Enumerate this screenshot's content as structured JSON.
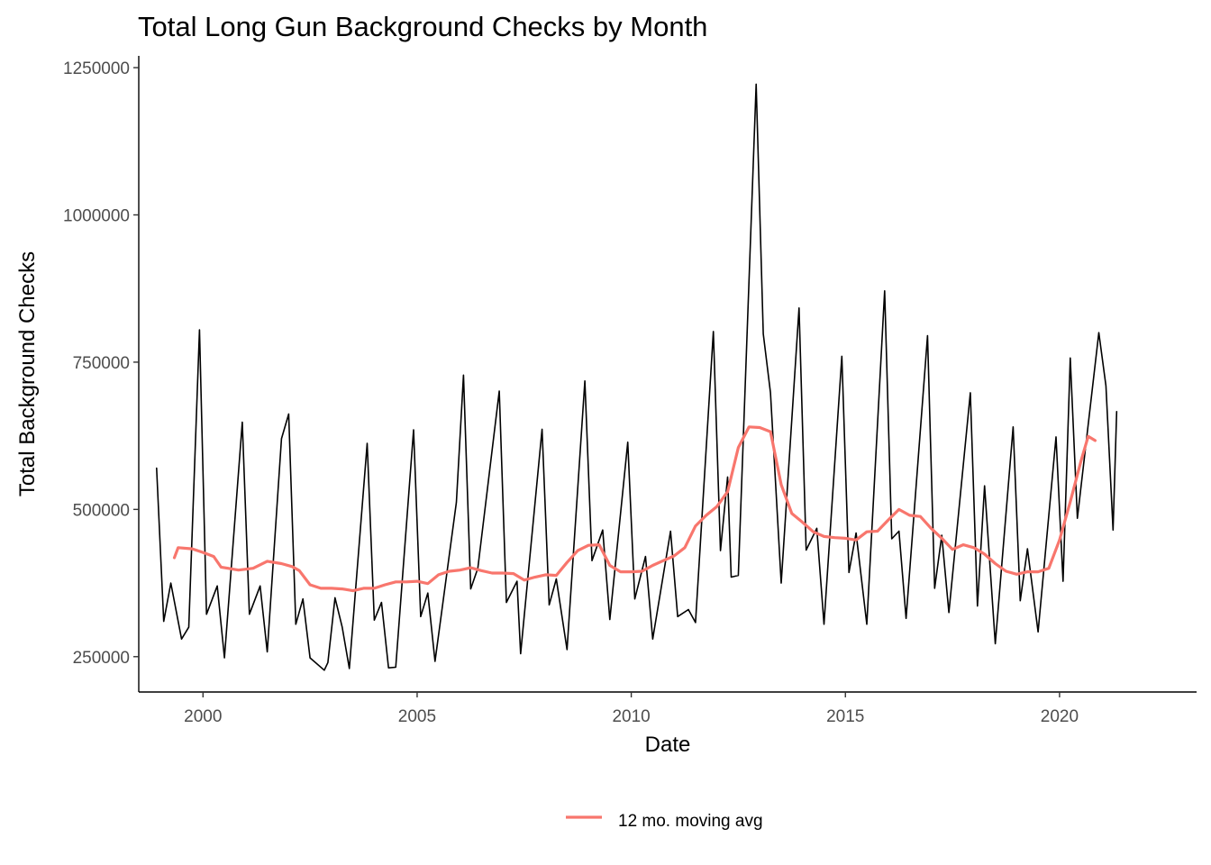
{
  "chart_data": {
    "type": "line",
    "title": "Total Long Gun Background Checks by Month",
    "xlabel": "Date",
    "ylabel": "Total Background Checks",
    "xlim": [
      1998.5,
      2023.2
    ],
    "ylim": [
      190000,
      1270000
    ],
    "x_ticks": [
      2000,
      2005,
      2010,
      2015,
      2020
    ],
    "x_tick_labels": [
      "2000",
      "2005",
      "2010",
      "2015",
      "2020"
    ],
    "y_ticks": [
      250000,
      500000,
      750000,
      1000000,
      1250000
    ],
    "y_tick_labels": [
      "250000",
      "500000",
      "750000",
      "1000000",
      "1250000"
    ],
    "grid": false,
    "legend": {
      "placement": "bottom",
      "entries": [
        "12 mo. moving avg"
      ]
    },
    "series": [
      {
        "color": "#000000",
        "x": [
          1998.917,
          1999.083,
          1999.25,
          1999.5,
          1999.667,
          1999.917,
          2000.083,
          2000.333,
          2000.5,
          2000.917,
          2001.083,
          2001.333,
          2001.5,
          2001.833,
          2002.0,
          2002.167,
          2002.333,
          2002.5,
          2002.833,
          2002.917,
          2003.083,
          2003.25,
          2003.417,
          2003.833,
          2004.0,
          2004.167,
          2004.333,
          2004.5,
          2004.917,
          2005.083,
          2005.25,
          2005.417,
          2005.917,
          2006.083,
          2006.25,
          2006.417,
          2006.917,
          2007.083,
          2007.333,
          2007.417,
          2007.917,
          2008.083,
          2008.25,
          2008.5,
          2008.917,
          2009.083,
          2009.333,
          2009.5,
          2009.917,
          2010.083,
          2010.333,
          2010.5,
          2010.917,
          2011.083,
          2011.333,
          2011.5,
          2011.917,
          2012.083,
          2012.25,
          2012.333,
          2012.5,
          2012.917,
          2013.083,
          2013.25,
          2013.5,
          2013.917,
          2014.083,
          2014.333,
          2014.5,
          2014.917,
          2015.083,
          2015.25,
          2015.5,
          2015.917,
          2016.083,
          2016.25,
          2016.417,
          2016.917,
          2017.083,
          2017.25,
          2017.417,
          2017.917,
          2018.083,
          2018.25,
          2018.5,
          2018.917,
          2019.083,
          2019.25,
          2019.5,
          2019.917,
          2020.083,
          2020.25,
          2020.417,
          2020.917,
          2021.083,
          2021.25,
          2021.333
        ],
        "y": [
          570000,
          310000,
          375000,
          280000,
          300000,
          805000,
          322000,
          370000,
          248000,
          648000,
          322000,
          370000,
          258000,
          620000,
          662000,
          305000,
          348000,
          248000,
          227000,
          240000,
          350000,
          300000,
          230000,
          612000,
          312000,
          342000,
          231000,
          232000,
          635000,
          318000,
          358000,
          242000,
          512000,
          728000,
          365000,
          400000,
          701000,
          342000,
          378000,
          255000,
          636000,
          338000,
          382000,
          262000,
          718000,
          413000,
          465000,
          313000,
          614000,
          348000,
          420000,
          280000,
          463000,
          318000,
          330000,
          308000,
          802000,
          430000,
          555000,
          385000,
          388000,
          1222000,
          798000,
          698000,
          375000,
          842000,
          431000,
          468000,
          305000,
          760000,
          393000,
          460000,
          305000,
          871000,
          450000,
          463000,
          315000,
          795000,
          366000,
          456000,
          325000,
          698000,
          336000,
          540000,
          272000,
          640000,
          345000,
          433000,
          292000,
          623000,
          378000,
          757000,
          485000,
          800000,
          710000,
          465000,
          666000
        ]
      },
      {
        "name": "12 mo. moving avg",
        "color": "#F8766D",
        "x": [
          1999.33,
          1999.42,
          1999.75,
          2000.0,
          2000.25,
          2000.42,
          2000.83,
          2001.17,
          2001.5,
          2001.83,
          2002.08,
          2002.25,
          2002.5,
          2002.75,
          2003.0,
          2003.25,
          2003.5,
          2003.75,
          2004.0,
          2004.25,
          2004.5,
          2004.75,
          2005.0,
          2005.25,
          2005.5,
          2005.75,
          2006.0,
          2006.25,
          2006.5,
          2006.75,
          2007.0,
          2007.25,
          2007.5,
          2007.75,
          2008.0,
          2008.25,
          2008.5,
          2008.75,
          2009.0,
          2009.25,
          2009.5,
          2009.75,
          2010.0,
          2010.25,
          2010.5,
          2010.75,
          2011.0,
          2011.25,
          2011.5,
          2011.75,
          2012.0,
          2012.25,
          2012.5,
          2012.75,
          2013.0,
          2013.25,
          2013.5,
          2013.75,
          2014.0,
          2014.25,
          2014.5,
          2014.75,
          2015.0,
          2015.25,
          2015.5,
          2015.75,
          2016.0,
          2016.25,
          2016.5,
          2016.75,
          2017.0,
          2017.25,
          2017.5,
          2017.75,
          2018.0,
          2018.25,
          2018.5,
          2018.75,
          2019.0,
          2019.25,
          2019.5,
          2019.75,
          2020.0,
          2020.25,
          2020.5,
          2020.67,
          2020.83
        ],
        "y": [
          418000,
          435000,
          433000,
          427000,
          420000,
          402000,
          397000,
          400000,
          412000,
          408000,
          403000,
          396000,
          372000,
          366000,
          366000,
          365000,
          362000,
          366000,
          366000,
          372000,
          377000,
          377000,
          378000,
          374000,
          389000,
          395000,
          397000,
          401000,
          396000,
          392000,
          392000,
          391000,
          380000,
          385000,
          389000,
          388000,
          410000,
          430000,
          439000,
          440000,
          405000,
          394000,
          394000,
          395000,
          405000,
          413000,
          421000,
          435000,
          472000,
          490000,
          505000,
          530000,
          605000,
          640000,
          639000,
          632000,
          542000,
          493000,
          478000,
          462000,
          454000,
          452000,
          451000,
          448000,
          462000,
          463000,
          482000,
          500000,
          490000,
          488000,
          468000,
          451000,
          432000,
          440000,
          435000,
          424000,
          408000,
          395000,
          390000,
          394000,
          394000,
          400000,
          448000,
          513000,
          582000,
          624000,
          617000
        ]
      }
    ]
  }
}
